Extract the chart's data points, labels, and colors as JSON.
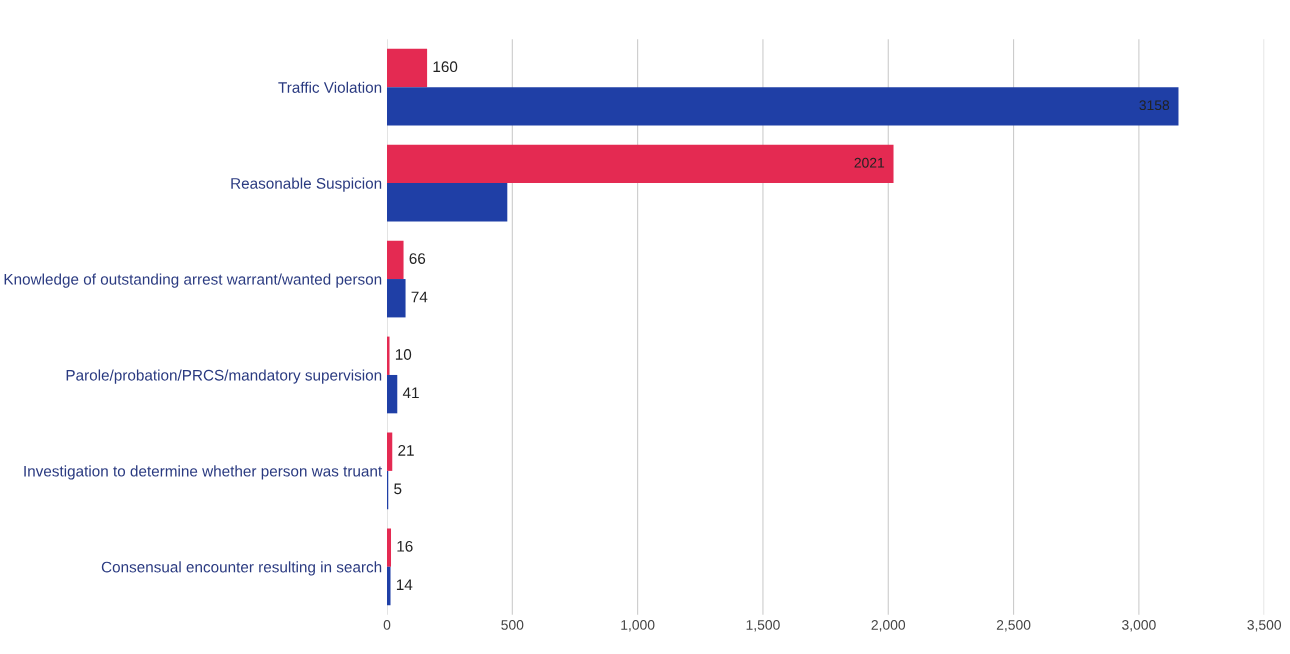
{
  "chart_data": {
    "type": "bar",
    "orientation": "horizontal",
    "categories": [
      "Traffic Violation",
      "Reasonable Suspicion",
      "Knowledge of outstanding arrest warrant/wanted person",
      "Parole/probation/PRCS/mandatory supervision",
      "Investigation to determine whether person was truant",
      "Consensual encounter resulting in search"
    ],
    "series": [
      {
        "color": "#e42a52",
        "values": [
          160,
          2021,
          66,
          10,
          21,
          16
        ],
        "value_labels": [
          "160",
          "2021",
          "66",
          "10",
          "21",
          "16"
        ]
      },
      {
        "color": "#1f3fa6",
        "values": [
          3158,
          480,
          74,
          41,
          5,
          14
        ],
        "value_labels": [
          "3158",
          null,
          "74",
          "41",
          "5",
          "14"
        ]
      }
    ],
    "xlim": [
      0,
      3500
    ],
    "xticks": [
      0,
      {
        "value": 500,
        "label": "500"
      },
      {
        "value": 1000,
        "label": "1,000"
      },
      {
        "value": 1500,
        "label": "1,500"
      },
      {
        "value": 2000,
        "label": "2,000"
      },
      {
        "value": 2500,
        "label": "2,500"
      },
      {
        "value": 3000,
        "label": "3,000"
      },
      {
        "value": 3500,
        "label": "3,500"
      }
    ],
    "grid": "x"
  }
}
